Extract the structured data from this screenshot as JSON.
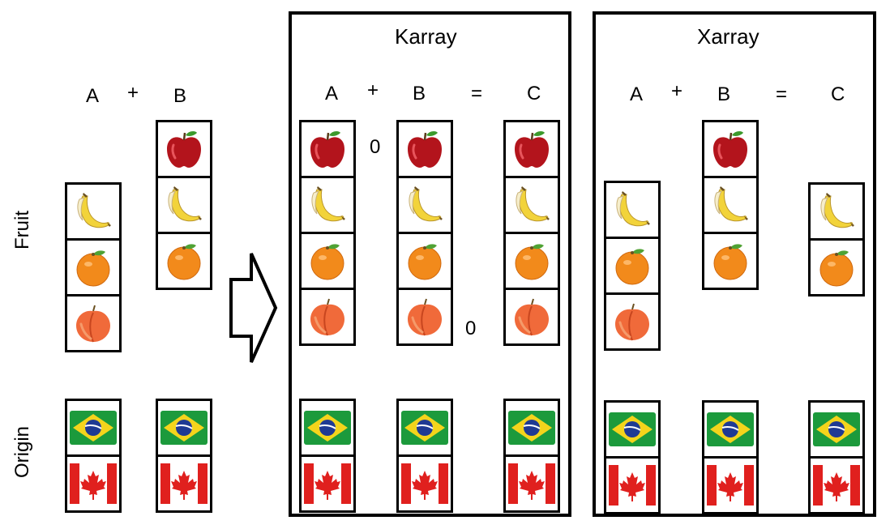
{
  "rows": {
    "fruit": "Fruit",
    "origin": "Origin"
  },
  "input": {
    "a": "A",
    "plus": "+",
    "b": "B"
  },
  "karray": {
    "title": "Karray",
    "a": "A",
    "plus": "+",
    "b": "B",
    "eq": "=",
    "c": "C",
    "zero_a": "0",
    "zero_b": "0"
  },
  "xarray": {
    "title": "Xarray",
    "a": "A",
    "plus": "+",
    "b": "B",
    "eq": "=",
    "c": "C"
  },
  "columns": {
    "in_a_fruit": [
      "banana",
      "orange",
      "peach"
    ],
    "in_b_fruit": [
      "apple",
      "banana",
      "orange"
    ],
    "k_a_fruit": [
      "apple",
      "banana",
      "orange",
      "peach"
    ],
    "k_b_fruit": [
      "apple",
      "banana",
      "orange",
      "peach"
    ],
    "k_c_fruit": [
      "apple",
      "banana",
      "orange",
      "peach"
    ],
    "x_a_fruit": [
      "banana",
      "orange",
      "peach"
    ],
    "x_b_fruit": [
      "apple",
      "banana",
      "orange"
    ],
    "x_c_fruit": [
      "banana",
      "orange"
    ],
    "origin": [
      "brazil-flag",
      "canada-flag"
    ]
  },
  "colors": {
    "apple": "#b3141c",
    "banana": "#f2d33a",
    "orange": "#f28a1b",
    "peach": "#f06a3a",
    "brazil_green": "#1c9a3c",
    "brazil_yellow": "#f4d41c",
    "brazil_blue": "#1f3a93",
    "canada_red": "#e0201e"
  }
}
